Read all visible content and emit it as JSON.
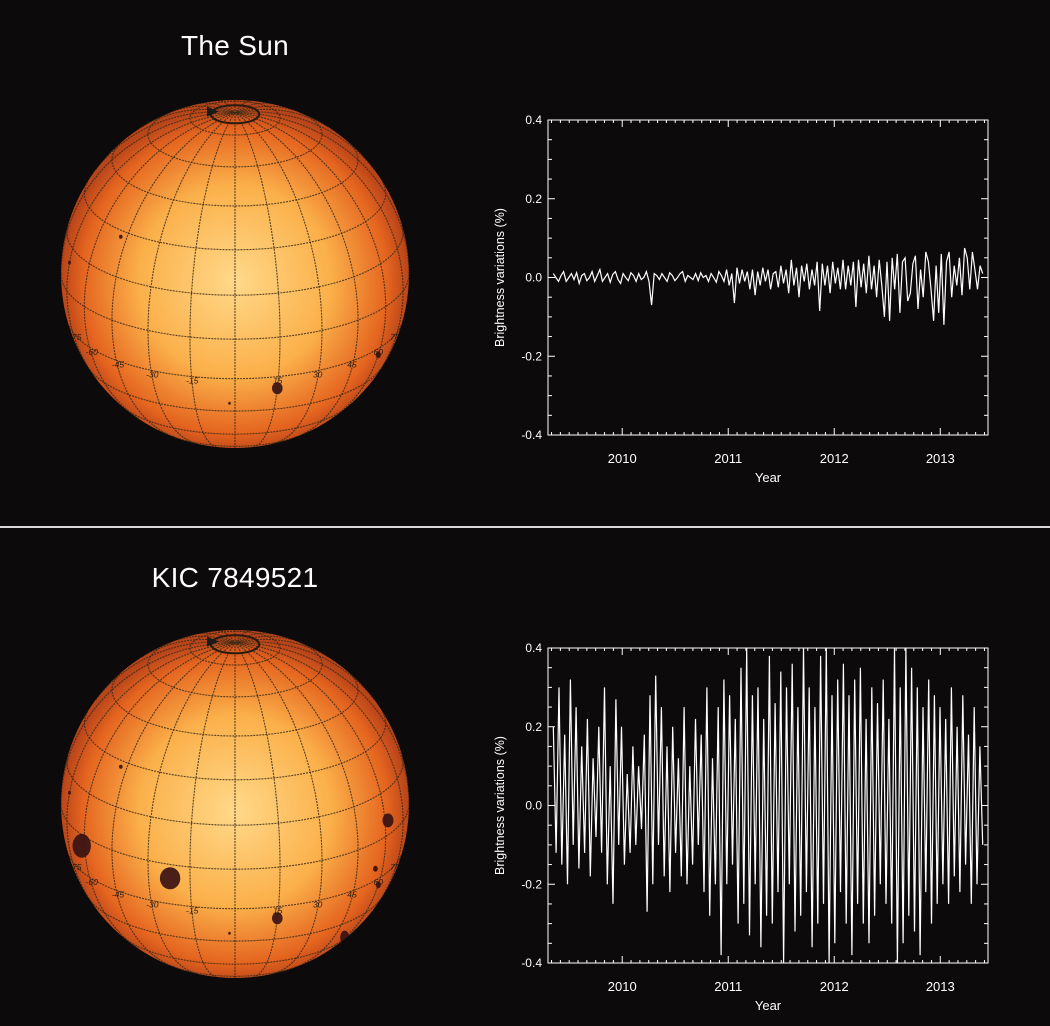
{
  "panels": [
    {
      "title": "The Sun",
      "sphere": {
        "latitude_labels": [
          "-75",
          "-60",
          "-45",
          "-30",
          "-15",
          "15",
          "30",
          "45",
          "60",
          "75"
        ],
        "spots": [
          {
            "lon": 15,
            "lat": -20,
            "r": 6
          },
          {
            "lon": 60,
            "lat": -18,
            "r": 3.5
          },
          {
            "lon": -75,
            "lat": 10,
            "r": 2
          },
          {
            "lon": -48,
            "lat": 28,
            "r": 2
          },
          {
            "lon": -2,
            "lat": -26,
            "r": 1.5
          }
        ]
      },
      "chart_data": {
        "type": "line",
        "xlabel": "Year",
        "ylabel": "Brightness variations (%)",
        "xlim": [
          2009.3,
          2013.45
        ],
        "ylim": [
          -0.4,
          0.4
        ],
        "xticks": [
          2010,
          2011,
          2012,
          2013
        ],
        "xtick_labels": [
          "2010",
          "2011",
          "2012",
          "2013"
        ],
        "yticks": [
          -0.4,
          -0.2,
          0.0,
          0.2,
          0.4
        ],
        "ytick_labels": [
          "-0.4",
          "-0.2",
          "0.0",
          "0.2",
          "0.4"
        ],
        "series": [
          {
            "x_start": 2009.35,
            "x_end": 2013.4,
            "values": [
              0.01,
              0.0,
              -0.01,
              0.005,
              0.015,
              -0.01,
              0.0,
              0.01,
              -0.005,
              0.012,
              -0.015,
              0.005,
              0.01,
              -0.008,
              0.0,
              0.015,
              -0.01,
              0.005,
              0.02,
              -0.01,
              0.0,
              0.01,
              -0.012,
              0.008,
              0.015,
              -0.005,
              -0.015,
              0.01,
              0.0,
              -0.008,
              0.012,
              0.005,
              -0.01,
              0.01,
              -0.005,
              0.0,
              0.015,
              -0.01,
              -0.07,
              0.01,
              0.005,
              -0.005,
              0.01,
              0.0,
              -0.01,
              0.012,
              0.005,
              -0.008,
              0.0,
              0.01,
              0.015,
              -0.01,
              0.005,
              0.0,
              -0.005,
              0.01,
              -0.008,
              0.012,
              0.0,
              0.005,
              -0.01,
              0.01,
              0.0,
              -0.012,
              0.015,
              0.005,
              -0.01,
              0.02,
              -0.02,
              0.01,
              -0.065,
              0.025,
              -0.015,
              0.02,
              -0.01,
              0.015,
              -0.03,
              0.02,
              -0.045,
              0.015,
              -0.02,
              0.025,
              -0.01,
              0.02,
              -0.03,
              0.01,
              0.015,
              -0.025,
              0.03,
              -0.015,
              0.02,
              -0.04,
              0.045,
              -0.02,
              0.025,
              -0.05,
              0.03,
              -0.01,
              0.035,
              -0.03,
              0.02,
              -0.02,
              0.04,
              -0.085,
              0.035,
              -0.02,
              0.03,
              -0.04,
              0.04,
              -0.015,
              0.025,
              -0.03,
              0.045,
              -0.03,
              0.03,
              -0.02,
              0.04,
              -0.075,
              0.045,
              -0.025,
              0.035,
              -0.04,
              0.055,
              -0.03,
              0.03,
              -0.05,
              0.045,
              -0.02,
              -0.1,
              0.04,
              -0.11,
              0.05,
              -0.03,
              0.06,
              -0.09,
              0.04,
              0.05,
              -0.06,
              -0.04,
              0.035,
              0.055,
              -0.08,
              0.02,
              -0.05,
              0.065,
              0.04,
              -0.03,
              -0.11,
              0.03,
              -0.09,
              0.06,
              -0.12,
              0.04,
              0.065,
              -0.05,
              0.03,
              -0.02,
              0.05,
              -0.045,
              0.075,
              0.05,
              -0.03,
              0.065,
              0.02,
              -0.03,
              0.03,
              0.01
            ]
          }
        ]
      }
    },
    {
      "title": "KIC 7849521",
      "sphere": {
        "latitude_labels": [
          "-75",
          "-60",
          "-45",
          "-30",
          "-15",
          "15",
          "30",
          "45",
          "60",
          "75"
        ],
        "spots": [
          {
            "lon": 15,
            "lat": -20,
            "r": 6
          },
          {
            "lon": 60,
            "lat": -18,
            "r": 3.5
          },
          {
            "lon": -75,
            "lat": 10,
            "r": 2
          },
          {
            "lon": -48,
            "lat": 28,
            "r": 2
          },
          {
            "lon": -2,
            "lat": -26,
            "r": 1.5
          },
          {
            "lon": -62,
            "lat": -4,
            "r": 12
          },
          {
            "lon": -22,
            "lat": -5,
            "r": 11
          },
          {
            "lon": 62,
            "lat": 5,
            "r": 7
          },
          {
            "lon": 58,
            "lat": -42,
            "r": 7
          },
          {
            "lon": 55,
            "lat": -10,
            "r": 3
          }
        ]
      },
      "chart_data": {
        "type": "line",
        "xlabel": "Year",
        "ylabel": "Brightness variations (%)",
        "xlim": [
          2009.3,
          2013.45
        ],
        "ylim": [
          -0.4,
          0.4
        ],
        "xticks": [
          2010,
          2011,
          2012,
          2013
        ],
        "xtick_labels": [
          "2010",
          "2011",
          "2012",
          "2013"
        ],
        "yticks": [
          -0.4,
          -0.2,
          0.0,
          0.2,
          0.4
        ],
        "ytick_labels": [
          "-0.4",
          "-0.2",
          "0.0",
          "0.2",
          "0.4"
        ],
        "series": [
          {
            "x_start": 2009.35,
            "x_end": 2013.4,
            "values": [
              0.2,
              -0.12,
              0.3,
              -0.15,
              0.18,
              -0.2,
              0.32,
              -0.1,
              0.25,
              -0.16,
              0.15,
              -0.12,
              0.22,
              -0.18,
              0.12,
              -0.08,
              0.2,
              -0.12,
              0.3,
              -0.2,
              0.1,
              -0.25,
              0.27,
              -0.1,
              0.2,
              -0.15,
              0.08,
              -0.12,
              0.15,
              -0.1,
              0.1,
              -0.06,
              0.18,
              -0.27,
              0.28,
              -0.2,
              0.33,
              -0.1,
              0.25,
              -0.18,
              0.15,
              -0.22,
              0.2,
              -0.12,
              0.12,
              -0.18,
              0.25,
              -0.2,
              0.1,
              -0.15,
              0.22,
              -0.1,
              0.18,
              -0.22,
              0.3,
              -0.28,
              0.12,
              -0.2,
              0.25,
              -0.38,
              0.32,
              -0.2,
              0.28,
              -0.15,
              0.22,
              -0.3,
              0.35,
              -0.25,
              0.4,
              -0.33,
              0.28,
              -0.2,
              0.3,
              -0.36,
              0.22,
              -0.28,
              0.38,
              -0.3,
              0.26,
              -0.22,
              0.34,
              -0.4,
              0.3,
              -0.2,
              0.36,
              -0.32,
              0.25,
              -0.28,
              0.4,
              -0.22,
              0.3,
              -0.36,
              0.25,
              -0.3,
              0.38,
              -0.25,
              0.4,
              -0.4,
              0.28,
              -0.35,
              0.32,
              -0.22,
              0.36,
              -0.3,
              0.28,
              -0.38,
              0.32,
              -0.25,
              0.35,
              -0.3,
              0.22,
              -0.35,
              0.3,
              -0.28,
              0.26,
              -0.2,
              0.32,
              -0.25,
              0.22,
              -0.3,
              0.4,
              -0.4,
              0.3,
              -0.35,
              0.4,
              -0.28,
              0.35,
              -0.32,
              0.3,
              -0.38,
              0.25,
              -0.22,
              0.32,
              -0.3,
              0.28,
              -0.25,
              0.25,
              -0.2,
              0.22,
              -0.25,
              0.3,
              -0.18,
              0.2,
              -0.22,
              0.28,
              -0.15,
              0.18,
              -0.25,
              0.25,
              -0.2,
              0.15,
              -0.1
            ]
          }
        ]
      }
    }
  ],
  "colors": {
    "background": "#0c0a0b",
    "sphere_center": "#ffd98a",
    "sphere_mid": "#fbb04a",
    "sphere_edge": "#e4641f",
    "grid": "#3a2a18",
    "spot": "#3a1212",
    "plot_line": "#ffffff",
    "axes": "#ffffff"
  }
}
